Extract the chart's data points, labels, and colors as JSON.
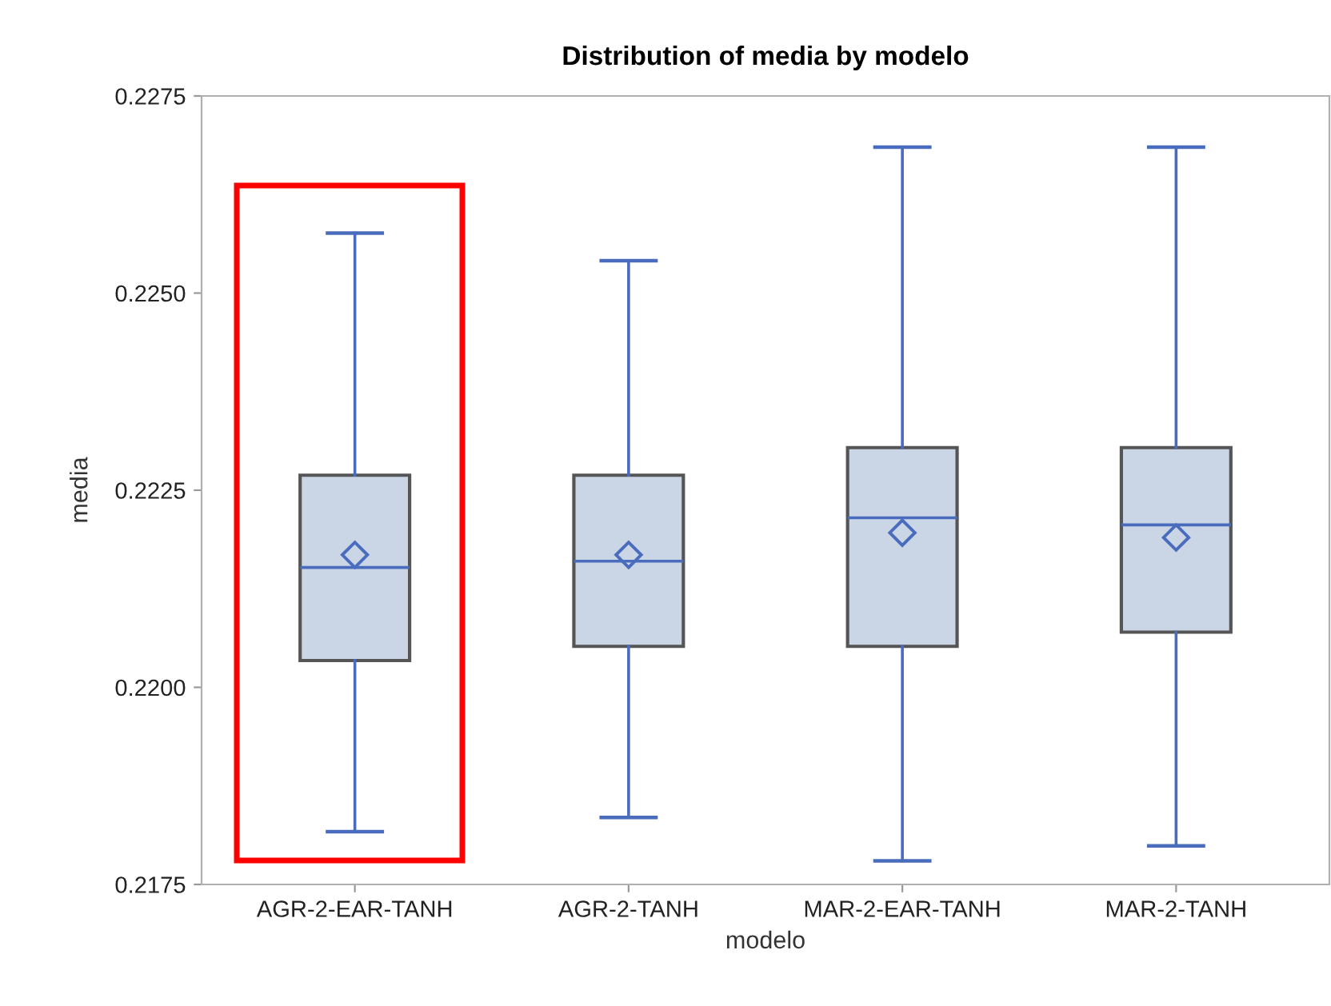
{
  "chart_data": {
    "type": "box",
    "title": "Distribution of media by modelo",
    "xlabel": "modelo",
    "ylabel": "media",
    "categories": [
      "AGR-2-EAR-TANH",
      "AGR-2-TANH",
      "MAR-2-EAR-TANH",
      "MAR-2-TANH"
    ],
    "boxes": [
      {
        "low": 0.21817,
        "q1": 0.22034,
        "median": 0.22152,
        "q3": 0.22269,
        "high": 0.22576,
        "mean": 0.22168
      },
      {
        "low": 0.21835,
        "q1": 0.22052,
        "median": 0.2216,
        "q3": 0.22269,
        "high": 0.22541,
        "mean": 0.22168
      },
      {
        "low": 0.2178,
        "q1": 0.22052,
        "median": 0.22215,
        "q3": 0.22304,
        "high": 0.22685,
        "mean": 0.22196
      },
      {
        "low": 0.21799,
        "q1": 0.2207,
        "median": 0.22206,
        "q3": 0.22304,
        "high": 0.22685,
        "mean": 0.2219
      }
    ],
    "color": "#cad5e6",
    "ylim": [
      0.2175,
      0.2275
    ],
    "yticks": [
      {
        "value": 0.2175,
        "label": "0.2175"
      },
      {
        "value": 0.22,
        "label": "0.2200"
      },
      {
        "value": 0.2225,
        "label": "0.2225"
      },
      {
        "value": 0.225,
        "label": "0.2250"
      },
      {
        "value": 0.2275,
        "label": "0.2275"
      }
    ],
    "grid": false,
    "legend": false,
    "marker": "diamond"
  }
}
